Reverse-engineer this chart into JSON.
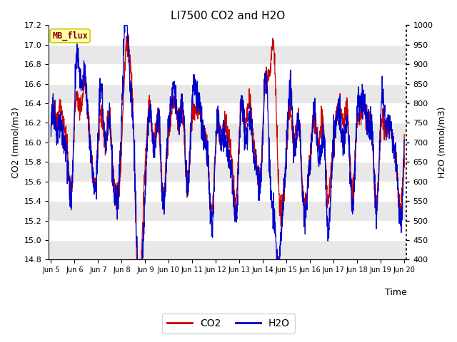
{
  "title": "LI7500 CO2 and H2O",
  "xlabel": "Time",
  "ylabel_left": "CO2 (mmol/m3)",
  "ylabel_right": "H2O (mmol/m3)",
  "co2_ylim": [
    14.8,
    17.2
  ],
  "h2o_ylim": [
    400,
    1000
  ],
  "co2_yticks": [
    14.8,
    15.0,
    15.2,
    15.4,
    15.6,
    15.8,
    16.0,
    16.2,
    16.4,
    16.6,
    16.8,
    17.0,
    17.2
  ],
  "h2o_yticks": [
    400,
    450,
    500,
    550,
    600,
    650,
    700,
    750,
    800,
    850,
    900,
    950,
    1000
  ],
  "xtick_labels": [
    "Jun 5",
    "Jun 6",
    "Jun 7",
    "Jun 8",
    "Jun 9",
    "Jun 10",
    "Jun 11",
    "Jun 12",
    "Jun 13",
    "Jun 14",
    "Jun 15",
    "Jun 16",
    "Jun 17",
    "Jun 18",
    "Jun 19",
    "Jun 20"
  ],
  "co2_color": "#cc0000",
  "h2o_color": "#0000cc",
  "bg_color": "#ffffff",
  "plot_bg_color": "#e8e8e8",
  "band_color": "#d0d0d0",
  "legend_label_co2": "CO2",
  "legend_label_h2o": "H2O",
  "watermark_text": "MB_flux",
  "watermark_color": "#8b0000",
  "watermark_bg": "#ffffaa",
  "watermark_edge": "#cccc00",
  "n_points": 2000,
  "n_days": 15
}
